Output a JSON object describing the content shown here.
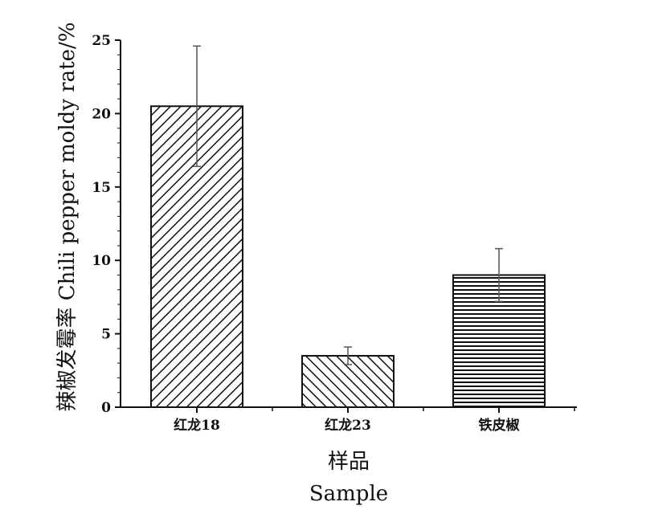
{
  "chart_data": {
    "type": "bar",
    "categories": [
      "红龙18",
      "红龙23",
      "铁皮椒"
    ],
    "values": [
      20.5,
      3.5,
      9.0
    ],
    "errors": [
      4.1,
      0.6,
      1.8
    ],
    "xlabel_cn": "样品",
    "xlabel_en": "Sample",
    "ylabel": "辣椒发霉率 Chili pepper moldy rate/%",
    "ylim": [
      0,
      25
    ],
    "yticks": [
      0,
      5,
      10,
      15,
      20,
      25
    ],
    "patterns": [
      "diagonal-up",
      "diagonal-down",
      "horizontal"
    ],
    "grid": false
  }
}
